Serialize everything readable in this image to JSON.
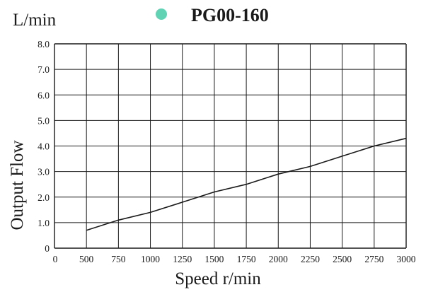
{
  "chart_data": {
    "type": "line",
    "title": "PG00-160",
    "unit_label": "L/min",
    "xlabel": "Speed r/min",
    "ylabel": "Output Flow",
    "marker_color": "#5fd3b3",
    "line_color": "#1a1a1a",
    "grid": true,
    "xlim": [
      0,
      3000
    ],
    "ylim": [
      0,
      8
    ],
    "x_ticks": [
      0,
      500,
      750,
      1000,
      1250,
      1500,
      1750,
      2000,
      2250,
      2500,
      2750,
      3000
    ],
    "y_ticks": [
      0,
      1,
      2,
      3,
      4,
      5,
      6,
      7,
      8
    ],
    "x_tick_labels": [
      "0",
      "500",
      "750",
      "1000",
      "1250",
      "1500",
      "1750",
      "2000",
      "2250",
      "2500",
      "2750",
      "3000"
    ],
    "y_tick_labels": [
      "0",
      "1.0",
      "2.0",
      "3.0",
      "4.0",
      "5.0",
      "6.0",
      "7.0",
      "8.0"
    ],
    "series": [
      {
        "x": [
          500,
          750,
          1000,
          1250,
          1500,
          1750,
          2000,
          2250,
          2500,
          2750,
          3000
        ],
        "y": [
          0.7,
          1.1,
          1.4,
          1.8,
          2.2,
          2.5,
          2.9,
          3.2,
          3.6,
          4.0,
          4.3
        ]
      }
    ]
  }
}
